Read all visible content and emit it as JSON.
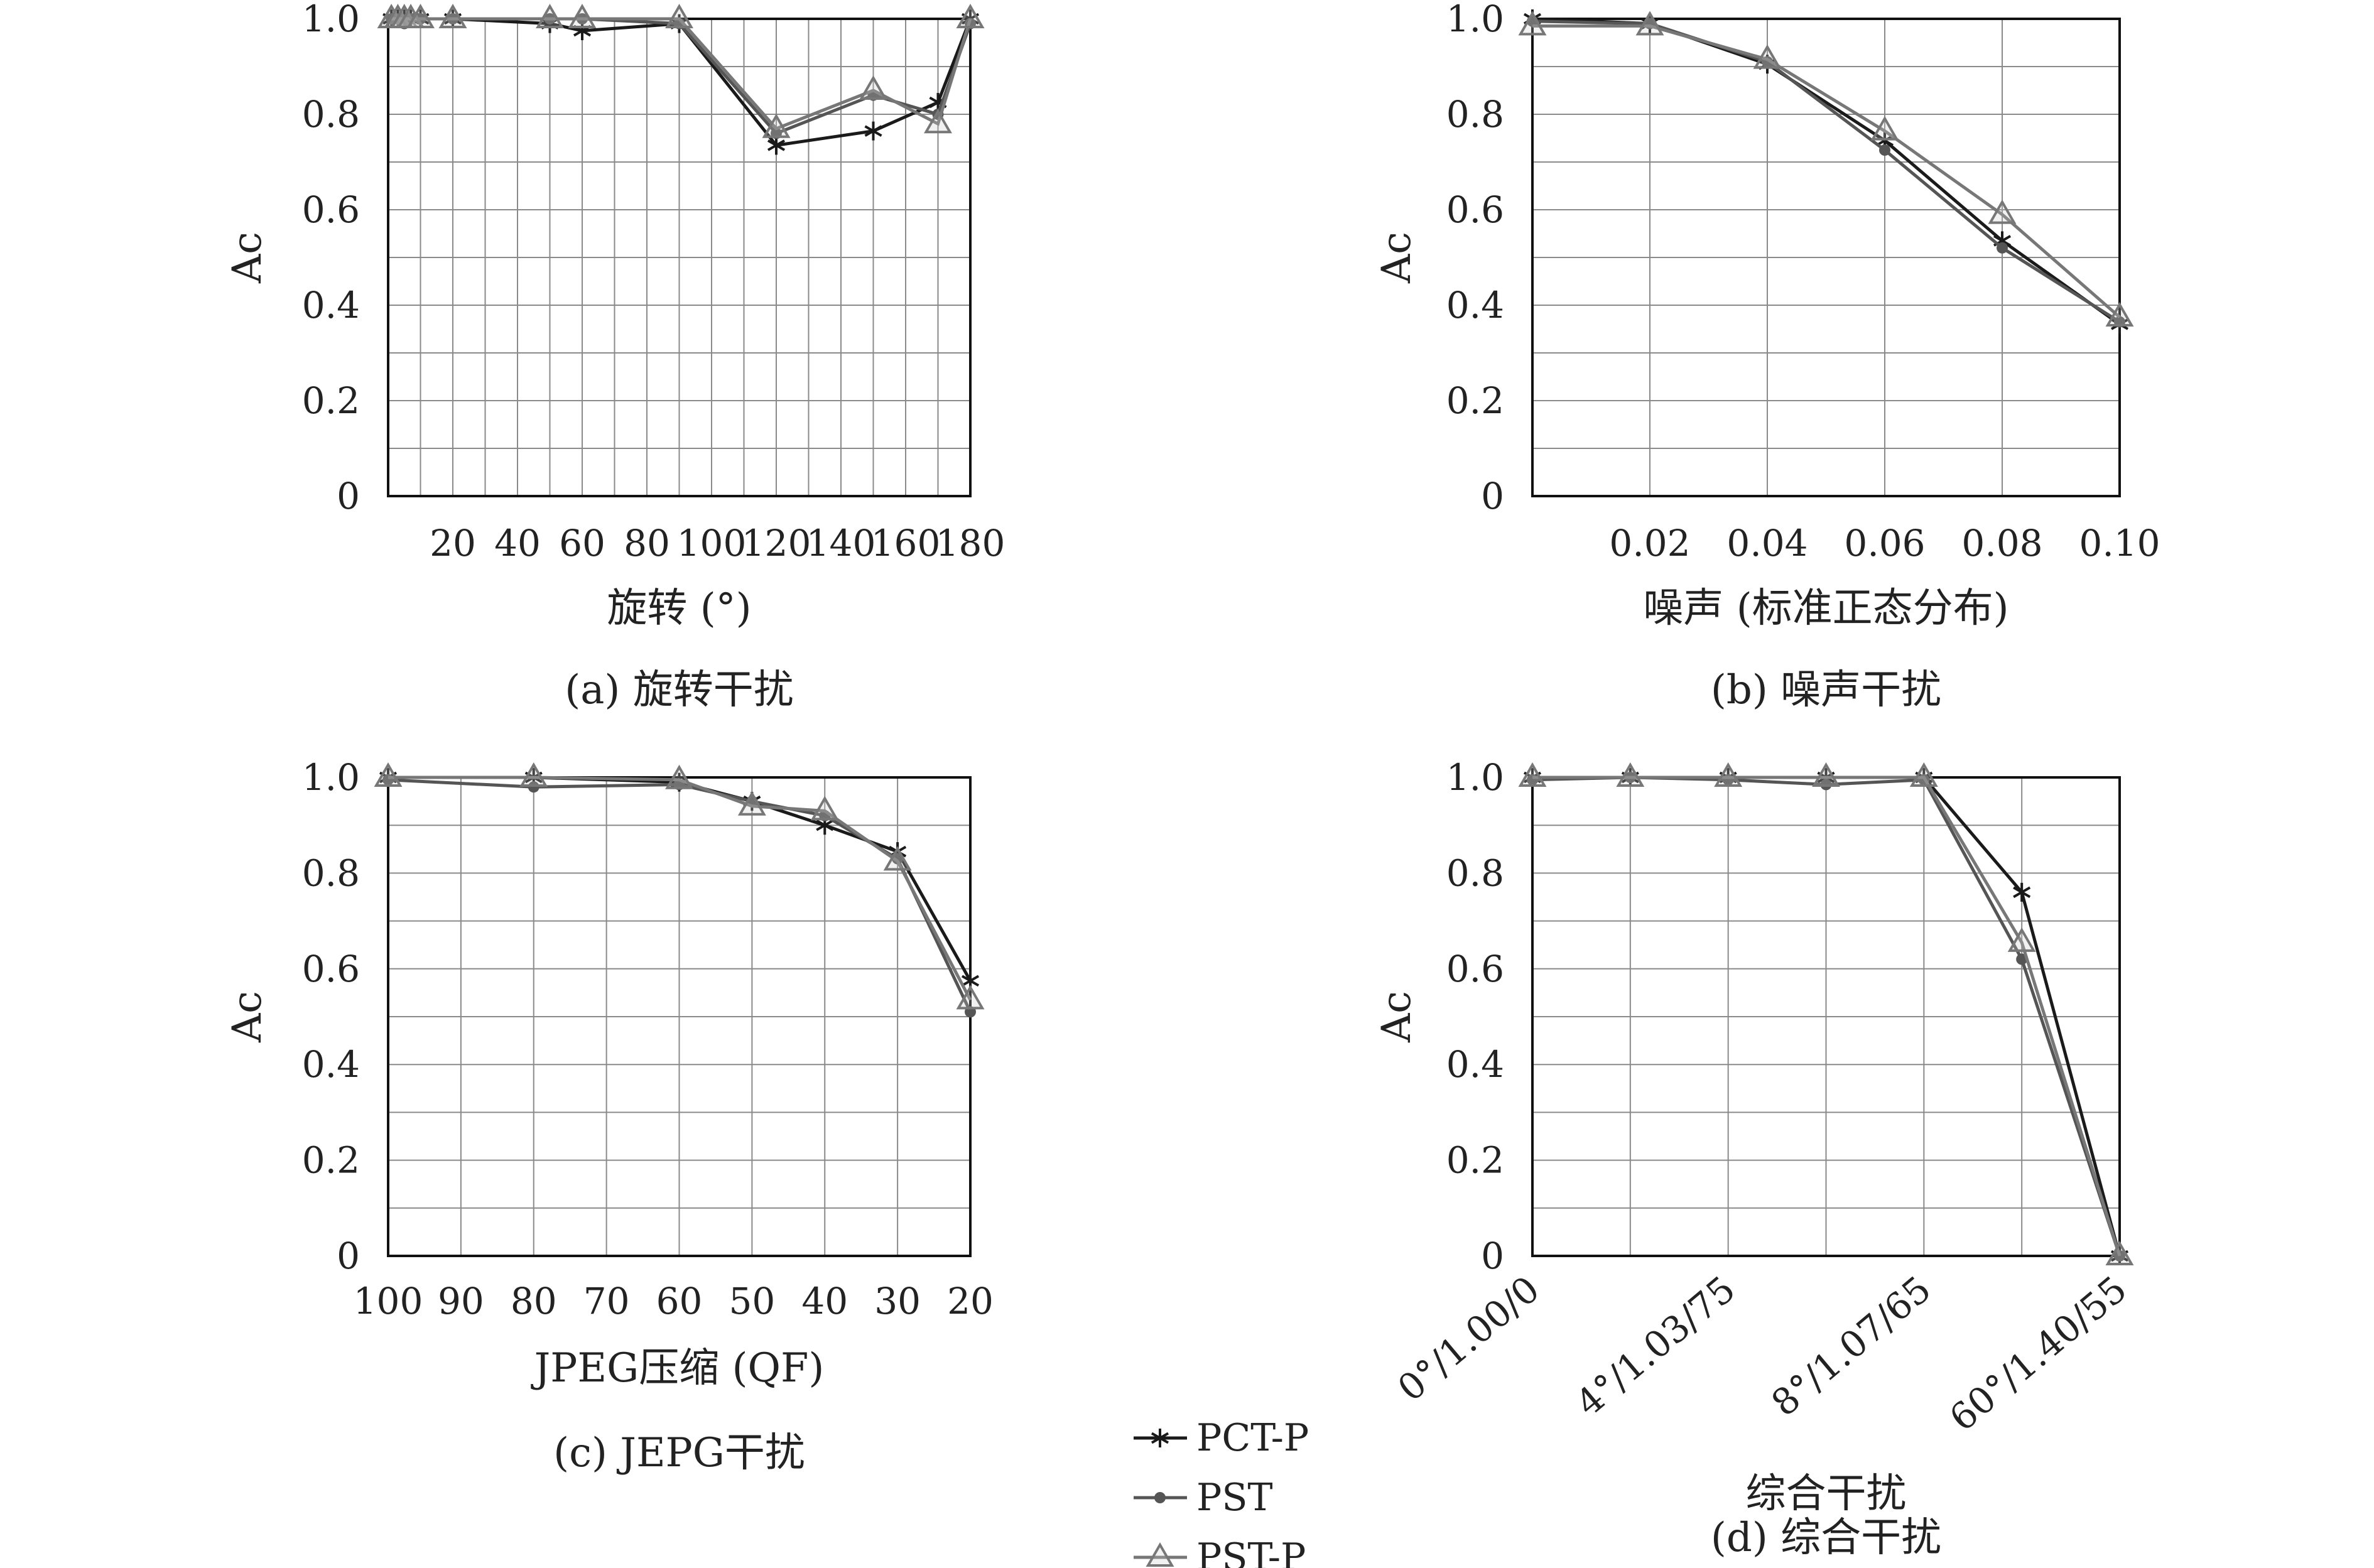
{
  "chart_data": [
    {
      "id": "a",
      "type": "line",
      "caption": "(a) 旋转干扰",
      "xlabel": "旋转 (°)",
      "ylabel": "Ac",
      "xlim": [
        0,
        180
      ],
      "ylim": [
        0,
        1.0
      ],
      "x_ticks": [
        20,
        40,
        60,
        80,
        100,
        120,
        140,
        160,
        180
      ],
      "x_tick_labels": [
        "20",
        "40",
        "60",
        "80",
        "100",
        "120",
        "140",
        "160",
        "180"
      ],
      "x_grid": [
        0,
        10,
        20,
        30,
        40,
        50,
        60,
        70,
        80,
        90,
        100,
        110,
        120,
        130,
        140,
        150,
        160,
        170,
        180
      ],
      "y_ticks": [
        0,
        0.2,
        0.4,
        0.6,
        0.8,
        1.0
      ],
      "y_tick_labels": [
        "0",
        "0.2",
        "0.4",
        "0.6",
        "0.8",
        "1.0"
      ],
      "y_grid": [
        0,
        0.1,
        0.2,
        0.3,
        0.4,
        0.5,
        0.6,
        0.7,
        0.8,
        0.9,
        1.0
      ],
      "x": [
        1,
        3,
        5,
        7,
        10,
        20,
        50,
        60,
        90,
        120,
        150,
        170,
        180
      ],
      "series": [
        {
          "name": "PCT-P",
          "values": [
            1.0,
            1.0,
            1.0,
            1.0,
            1.0,
            1.0,
            0.99,
            0.975,
            0.99,
            0.735,
            0.765,
            0.825,
            1.0
          ]
        },
        {
          "name": "PST",
          "values": [
            1.0,
            1.0,
            0.99,
            1.0,
            1.0,
            1.0,
            1.0,
            1.0,
            0.99,
            0.76,
            0.84,
            0.8,
            0.99
          ]
        },
        {
          "name": "PST-P",
          "values": [
            1.0,
            1.0,
            1.0,
            1.0,
            1.0,
            1.0,
            1.0,
            1.0,
            1.0,
            0.77,
            0.85,
            0.78,
            1.0
          ]
        }
      ]
    },
    {
      "id": "b",
      "type": "line",
      "caption": "(b) 噪声干扰",
      "xlabel": "噪声 (标准正态分布)",
      "ylabel": "Ac",
      "xlim": [
        0,
        0.1
      ],
      "ylim": [
        0,
        1.0
      ],
      "x_ticks": [
        0.02,
        0.04,
        0.06,
        0.08,
        0.1
      ],
      "x_tick_labels": [
        "0.02",
        "0.04",
        "0.06",
        "0.08",
        "0.10"
      ],
      "x_grid": [
        0,
        0.02,
        0.04,
        0.06,
        0.08,
        0.1
      ],
      "y_ticks": [
        0,
        0.2,
        0.4,
        0.6,
        0.8,
        1.0
      ],
      "y_tick_labels": [
        "0",
        "0.2",
        "0.4",
        "0.6",
        "0.8",
        "1.0"
      ],
      "y_grid": [
        0,
        0.1,
        0.2,
        0.3,
        0.4,
        0.5,
        0.6,
        0.7,
        0.8,
        0.9,
        1.0
      ],
      "x": [
        0,
        0.02,
        0.04,
        0.06,
        0.08,
        0.1
      ],
      "series": [
        {
          "name": "PCT-P",
          "values": [
            1.0,
            0.99,
            0.905,
            0.745,
            0.535,
            0.36
          ]
        },
        {
          "name": "PST",
          "values": [
            0.995,
            0.99,
            0.91,
            0.725,
            0.52,
            0.365
          ]
        },
        {
          "name": "PST-P",
          "values": [
            0.985,
            0.985,
            0.915,
            0.765,
            0.59,
            0.375
          ]
        }
      ]
    },
    {
      "id": "c",
      "type": "line",
      "caption": "(c) JEPG干扰",
      "xlabel": "JPEG压缩 (QF)",
      "ylabel": "Ac",
      "xlim": [
        100,
        20
      ],
      "ylim": [
        0,
        1.0
      ],
      "x_ticks": [
        100,
        90,
        80,
        70,
        60,
        50,
        40,
        30,
        20
      ],
      "x_tick_labels": [
        "100",
        "90",
        "80",
        "70",
        "60",
        "50",
        "40",
        "30",
        "20"
      ],
      "x_grid": [
        100,
        90,
        80,
        70,
        60,
        50,
        40,
        30,
        20
      ],
      "y_ticks": [
        0,
        0.2,
        0.4,
        0.6,
        0.8,
        1.0
      ],
      "y_tick_labels": [
        "0",
        "0.2",
        "0.4",
        "0.6",
        "0.8",
        "1.0"
      ],
      "y_grid": [
        0,
        0.1,
        0.2,
        0.3,
        0.4,
        0.5,
        0.6,
        0.7,
        0.8,
        0.9,
        1.0
      ],
      "x": [
        100,
        80,
        60,
        50,
        40,
        30,
        20
      ],
      "series": [
        {
          "name": "PCT-P",
          "values": [
            1.0,
            1.0,
            0.99,
            0.95,
            0.9,
            0.845,
            0.575
          ]
        },
        {
          "name": "PST",
          "values": [
            0.995,
            0.98,
            0.985,
            0.95,
            0.92,
            0.83,
            0.51
          ]
        },
        {
          "name": "PST-P",
          "values": [
            1.0,
            1.0,
            0.995,
            0.94,
            0.93,
            0.825,
            0.535
          ]
        }
      ]
    },
    {
      "id": "d",
      "type": "line",
      "caption": "(d) 综合干扰",
      "xlabel": "综合干扰",
      "ylabel": "Ac",
      "xlim": [
        0,
        6
      ],
      "ylim": [
        0,
        1.0
      ],
      "x_ticks": [
        0,
        2,
        4,
        6
      ],
      "x_tick_labels": [
        "0°/1.00/0",
        "4°/1.03/75",
        "8°/1.07/65",
        "60°/1.40/55"
      ],
      "x_grid": [
        0,
        1,
        2,
        3,
        4,
        5,
        6
      ],
      "y_ticks": [
        0,
        0.2,
        0.4,
        0.6,
        0.8,
        1.0
      ],
      "y_tick_labels": [
        "0",
        "0.2",
        "0.4",
        "0.6",
        "0.8",
        "1.0"
      ],
      "y_grid": [
        0,
        0.1,
        0.2,
        0.3,
        0.4,
        0.5,
        0.6,
        0.7,
        0.8,
        0.9,
        1.0
      ],
      "x": [
        0,
        1,
        2,
        3,
        4,
        5,
        6
      ],
      "series": [
        {
          "name": "PCT-P",
          "values": [
            1.0,
            1.0,
            1.0,
            1.0,
            1.0,
            0.76,
            0.0
          ]
        },
        {
          "name": "PST",
          "values": [
            0.995,
            1.0,
            0.995,
            0.985,
            0.995,
            0.62,
            0.0
          ]
        },
        {
          "name": "PST-P",
          "values": [
            1.0,
            1.0,
            1.0,
            1.0,
            1.0,
            0.655,
            0.0
          ]
        }
      ]
    }
  ],
  "legend": {
    "entries": [
      {
        "name": "PCT-P",
        "marker": "asterisk",
        "color": "#1a1a1a"
      },
      {
        "name": "PST",
        "marker": "dot",
        "color": "#555555"
      },
      {
        "name": "PST-P",
        "marker": "triangle",
        "color": "#777777"
      }
    ]
  },
  "series_style": {
    "PCT-P": {
      "color": "#1a1a1a",
      "marker": "asterisk"
    },
    "PST": {
      "color": "#555555",
      "marker": "dot"
    },
    "PST-P": {
      "color": "#777777",
      "marker": "triangle"
    }
  }
}
